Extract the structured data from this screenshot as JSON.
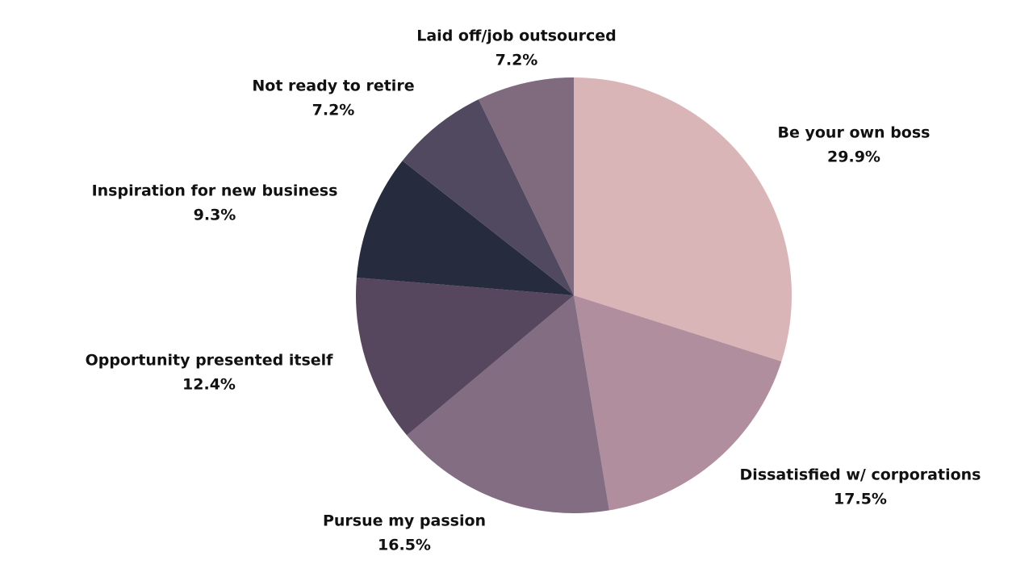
{
  "chart_data": {
    "type": "pie",
    "categories": [
      "Be your own boss",
      "Dissatisfied w/ corporations",
      "Pursue my passion",
      "Opportunity presented itself",
      "Inspiration for new business",
      "Not ready to retire",
      "Laid off/job outsourced"
    ],
    "values": [
      29.9,
      17.5,
      16.5,
      12.4,
      9.3,
      7.2,
      7.2
    ],
    "value_labels": [
      "29.9%",
      "17.5%",
      "16.5%",
      "12.4%",
      "9.3%",
      "7.2%",
      "7.2%"
    ],
    "colors": [
      "#dab5b8",
      "#b08e9e",
      "#836d82",
      "#56475e",
      "#272b3e",
      "#514960",
      "#7f6a7e"
    ]
  }
}
